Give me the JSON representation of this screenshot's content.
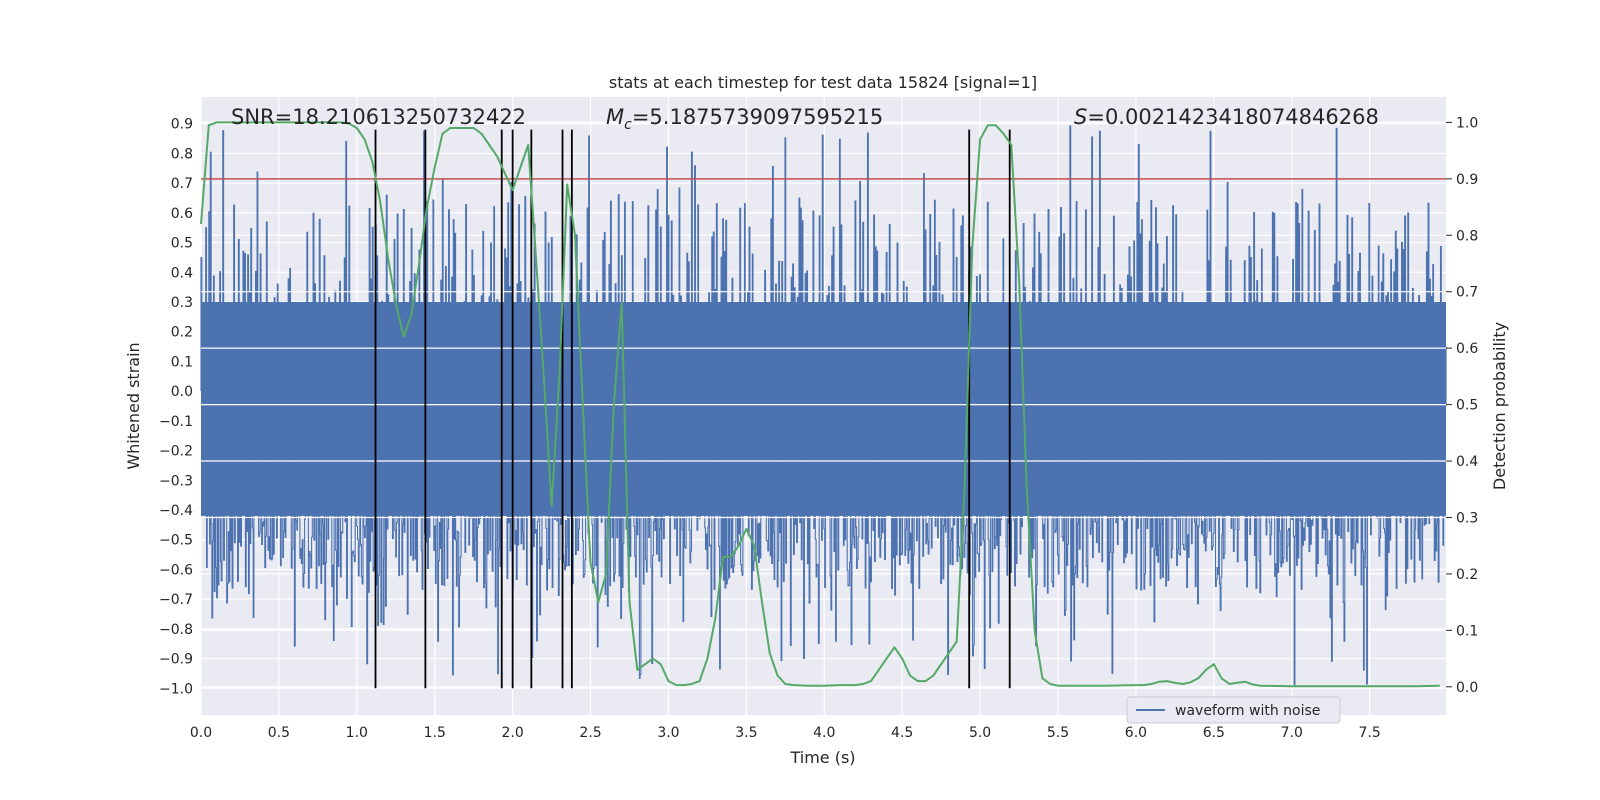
{
  "chart_data": {
    "type": "line",
    "title": "stats at each timestep for test data 15824 [signal=1]",
    "xlabel": "Time (s)",
    "ylabel_left": "Whitened strain",
    "ylabel_right": "Detection probability",
    "xlim": [
      0.0,
      7.99
    ],
    "ylim_left": [
      -1.09,
      0.99
    ],
    "ylim_right": [
      -0.05,
      1.045
    ],
    "x_ticks": [
      0.0,
      0.5,
      1.0,
      1.5,
      2.0,
      2.5,
      3.0,
      3.5,
      4.0,
      4.5,
      5.0,
      5.5,
      6.0,
      6.5,
      7.0,
      7.5
    ],
    "x_tick_labels": [
      "0.0",
      "0.5",
      "1.0",
      "1.5",
      "2.0",
      "2.5",
      "3.0",
      "3.5",
      "4.0",
      "4.5",
      "5.0",
      "5.5",
      "6.0",
      "6.5",
      "7.0",
      "7.5"
    ],
    "y_left_ticks": [
      0.9,
      0.8,
      0.7,
      0.6,
      0.5,
      0.4,
      0.3,
      0.2,
      0.1,
      0.0,
      -0.1,
      -0.2,
      -0.3,
      -0.4,
      -0.5,
      -0.6,
      -0.7,
      -0.8,
      -0.9,
      -1.0
    ],
    "y_left_tick_labels": [
      "0.9",
      "0.8",
      "0.7",
      "0.6",
      "0.5",
      "0.4",
      "0.3",
      "0.2",
      "0.1",
      "0.0",
      "−0.1",
      "−0.2",
      "−0.3",
      "−0.4",
      "−0.5",
      "−0.6",
      "−0.7",
      "−0.8",
      "−0.9",
      "−1.0"
    ],
    "y_right_ticks": [
      1.0,
      0.9,
      0.8,
      0.7,
      0.6,
      0.5,
      0.4,
      0.3,
      0.2,
      0.1,
      0.0
    ],
    "y_right_tick_labels": [
      "1.0",
      "0.9",
      "0.8",
      "0.7",
      "0.6",
      "0.5",
      "0.4",
      "0.3",
      "0.2",
      "0.1",
      "0.0"
    ],
    "annotations": {
      "snr": "SNR=18.210613250732422",
      "mc": "=5.1875739097595215",
      "mc_symbol": "M",
      "mc_sub": "c",
      "s": "=0.0021423418074846268",
      "s_symbol": "S"
    },
    "legend": {
      "label": "waveform with noise",
      "placement": "lower-right"
    },
    "waveform": {
      "name": "waveform with noise",
      "color": "#4c72b0",
      "core_range": [
        -0.42,
        0.3
      ],
      "peak_range": [
        -1.0,
        0.9
      ],
      "approx_samples": 1600
    },
    "threshold": {
      "value": 0.9,
      "axis": "right",
      "color": "#c44e52"
    },
    "event_lines": {
      "x": [
        1.12,
        1.44,
        1.93,
        2.0,
        2.12,
        2.32,
        2.38,
        4.93,
        5.19
      ],
      "y_range": [
        -1.0,
        0.88
      ],
      "color": "#000000"
    },
    "detection_probability": {
      "color": "#55a868",
      "x": [
        0.0,
        0.05,
        0.1,
        0.2,
        0.3,
        0.5,
        0.7,
        0.9,
        0.95,
        1.0,
        1.05,
        1.1,
        1.15,
        1.2,
        1.25,
        1.3,
        1.35,
        1.4,
        1.45,
        1.5,
        1.55,
        1.6,
        1.65,
        1.7,
        1.75,
        1.8,
        1.85,
        1.9,
        1.95,
        2.0,
        2.05,
        2.1,
        2.15,
        2.2,
        2.25,
        2.3,
        2.35,
        2.4,
        2.45,
        2.5,
        2.55,
        2.6,
        2.65,
        2.7,
        2.75,
        2.8,
        2.85,
        2.9,
        2.95,
        3.0,
        3.05,
        3.1,
        3.15,
        3.2,
        3.25,
        3.3,
        3.35,
        3.4,
        3.45,
        3.5,
        3.55,
        3.6,
        3.65,
        3.7,
        3.75,
        3.8,
        3.9,
        4.0,
        4.1,
        4.2,
        4.25,
        4.3,
        4.35,
        4.4,
        4.45,
        4.5,
        4.55,
        4.6,
        4.65,
        4.7,
        4.75,
        4.8,
        4.85,
        4.9,
        4.95,
        5.0,
        5.05,
        5.1,
        5.15,
        5.2,
        5.25,
        5.3,
        5.35,
        5.4,
        5.45,
        5.5,
        5.6,
        5.8,
        6.0,
        6.05,
        6.1,
        6.15,
        6.2,
        6.25,
        6.3,
        6.35,
        6.4,
        6.45,
        6.5,
        6.55,
        6.6,
        6.65,
        6.7,
        6.75,
        6.8,
        7.0,
        7.2,
        7.4,
        7.6,
        7.8,
        7.95
      ],
      "y": [
        0.82,
        0.995,
        1.0,
        1.0,
        1.0,
        1.0,
        1.0,
        1.0,
        0.998,
        0.99,
        0.97,
        0.93,
        0.86,
        0.76,
        0.68,
        0.62,
        0.66,
        0.75,
        0.85,
        0.92,
        0.98,
        0.99,
        0.99,
        0.99,
        0.99,
        0.98,
        0.96,
        0.94,
        0.91,
        0.88,
        0.92,
        0.96,
        0.76,
        0.55,
        0.32,
        0.55,
        0.89,
        0.8,
        0.5,
        0.22,
        0.15,
        0.2,
        0.5,
        0.68,
        0.15,
        0.03,
        0.04,
        0.05,
        0.04,
        0.01,
        0.003,
        0.003,
        0.005,
        0.01,
        0.05,
        0.12,
        0.23,
        0.23,
        0.25,
        0.28,
        0.25,
        0.15,
        0.06,
        0.02,
        0.005,
        0.003,
        0.002,
        0.002,
        0.003,
        0.003,
        0.005,
        0.01,
        0.03,
        0.05,
        0.07,
        0.05,
        0.02,
        0.01,
        0.01,
        0.02,
        0.04,
        0.06,
        0.08,
        0.35,
        0.78,
        0.97,
        0.995,
        0.995,
        0.98,
        0.96,
        0.72,
        0.35,
        0.1,
        0.015,
        0.005,
        0.002,
        0.002,
        0.002,
        0.003,
        0.003,
        0.005,
        0.009,
        0.01,
        0.007,
        0.005,
        0.008,
        0.015,
        0.03,
        0.04,
        0.015,
        0.005,
        0.007,
        0.009,
        0.004,
        0.002,
        0.001,
        0.001,
        0.001,
        0.001,
        0.001,
        0.002
      ]
    }
  }
}
